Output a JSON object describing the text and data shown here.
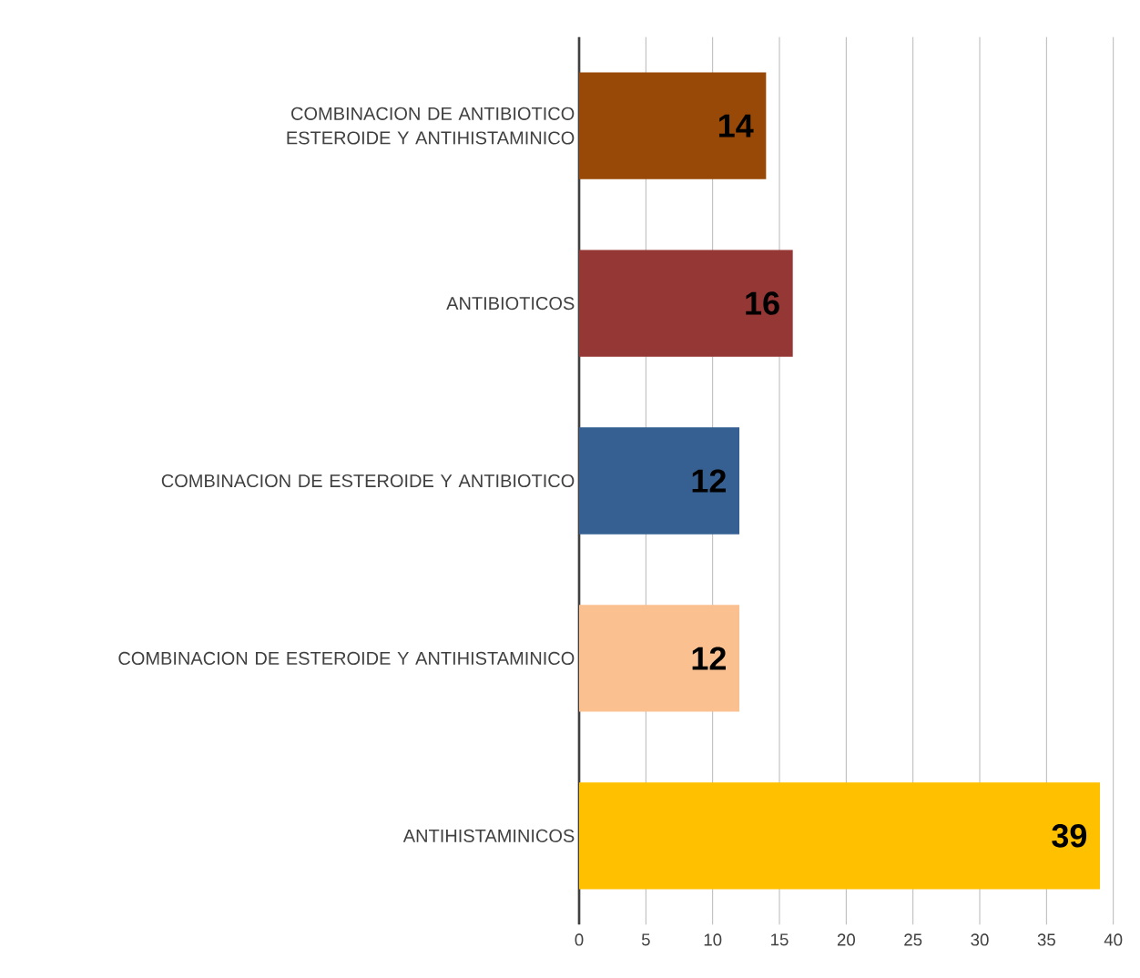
{
  "chart_data": {
    "type": "bar",
    "orientation": "horizontal",
    "categories": [
      "COMBINACION DE ANTIBIOTICO ESTEROIDE Y ANTIHISTAMINICO",
      "ANTIBIOTICOS",
      "COMBINACION DE ESTEROIDE  Y ANTIBIOTICO",
      "COMBINACION DE ESTEROIDE Y ANTIHISTAMINICO",
      "ANTIHISTAMINICOS"
    ],
    "values": [
      14,
      16,
      12,
      12,
      39
    ],
    "colors": [
      "#984807",
      "#953735",
      "#376092",
      "#fac090",
      "#ffc000"
    ],
    "xlim": [
      0,
      40
    ],
    "xticks": [
      0,
      5,
      10,
      15,
      20,
      25,
      30,
      35,
      40
    ],
    "grid": "x",
    "data_labels": true
  }
}
